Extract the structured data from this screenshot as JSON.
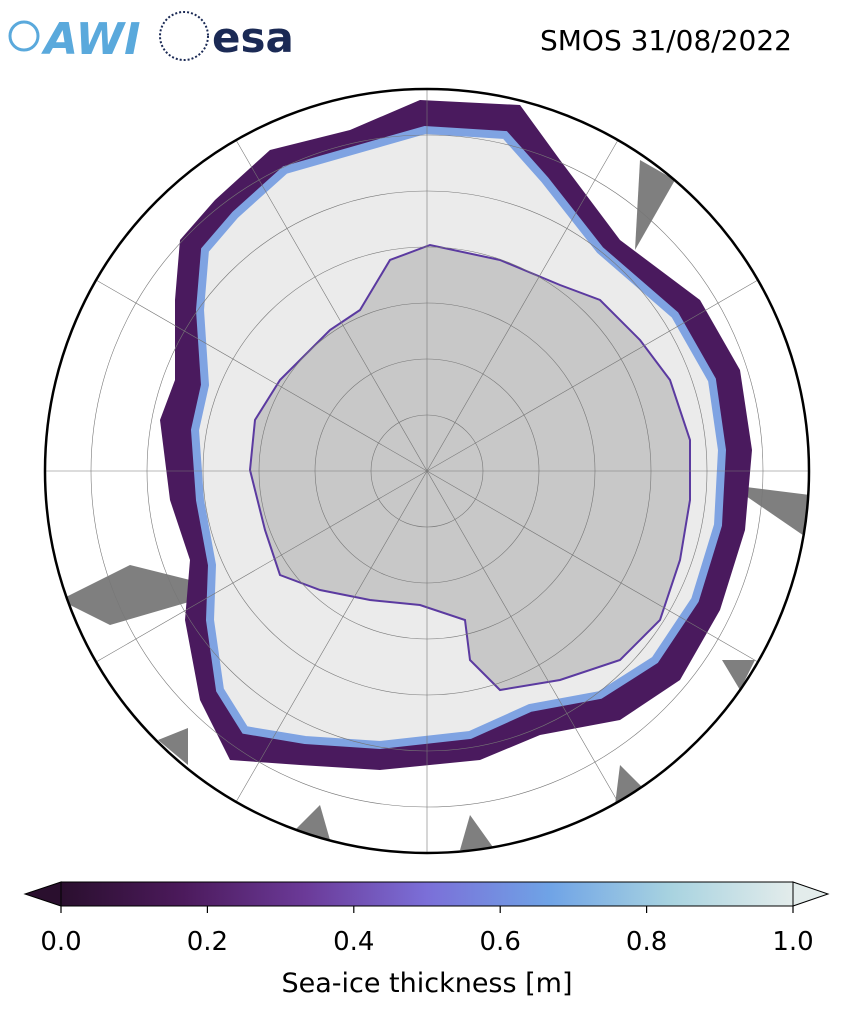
{
  "header": {
    "title": "SMOS 31/08/2022",
    "logos": [
      "AWI",
      "esa"
    ]
  },
  "colorbar": {
    "label": "Sea-ice thickness [m]",
    "lim": [
      0,
      1
    ],
    "ticks": [
      {
        "value": 0,
        "label": "0.0"
      },
      {
        "value": 0.2,
        "label": "0.2"
      },
      {
        "value": 0.4,
        "label": "0.4"
      },
      {
        "value": 0.6,
        "label": "0.6"
      },
      {
        "value": 0.8,
        "label": "0.8"
      },
      {
        "value": 1,
        "label": "1.0"
      }
    ],
    "colors": [
      "#2a0f2e",
      "#4c1a5c",
      "#6b3a98",
      "#7b6fd8",
      "#6fa3e6",
      "#a8d3e0",
      "#e3eceb"
    ]
  }
}
